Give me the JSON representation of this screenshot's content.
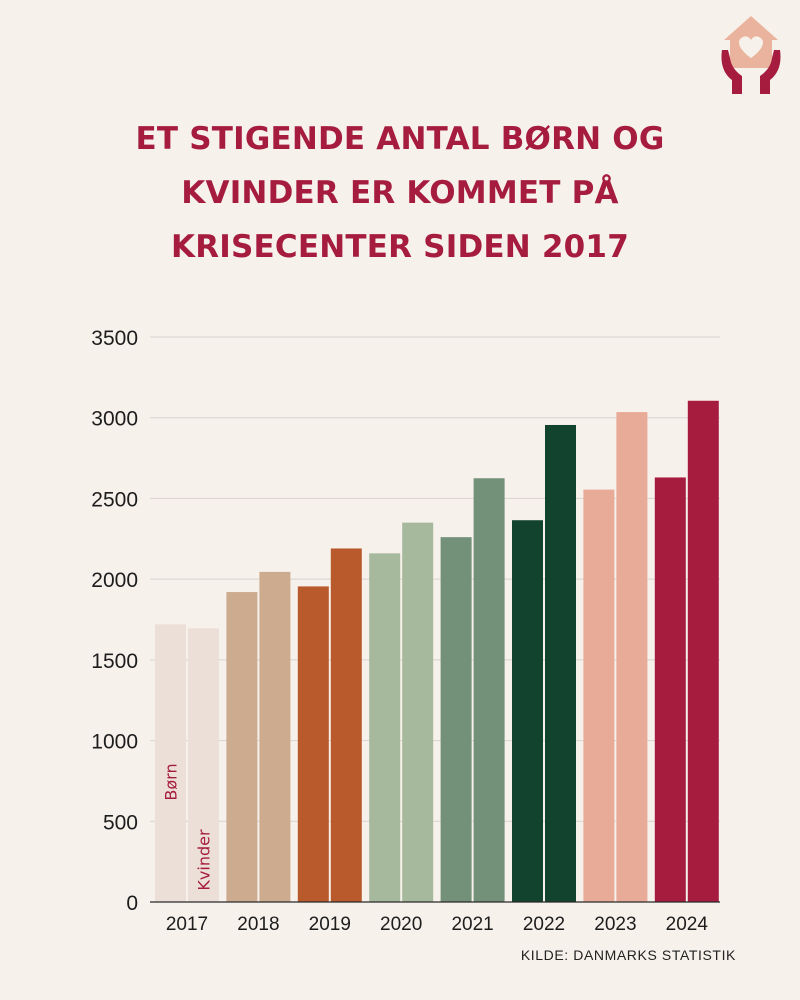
{
  "header": {
    "title_lines": [
      "ET STIGENDE ANTAL BØRN OG",
      "KVINDER ER KOMMET PÅ",
      "KRISECENTER SIDEN 2017"
    ],
    "logo_icon": "house-heart-hands-icon"
  },
  "footer": {
    "source": "KILDE: DANMARKS STATISTIK"
  },
  "chart_data": {
    "type": "bar",
    "title": "ET STIGENDE ANTAL BØRN OG KVINDER ER KOMMET PÅ KRISECENTER SIDEN 2017",
    "categories": [
      "2017",
      "2018",
      "2019",
      "2020",
      "2021",
      "2022",
      "2023",
      "2024"
    ],
    "series": [
      {
        "name": "Børn",
        "values": [
          1720,
          1920,
          1955,
          2160,
          2260,
          2365,
          2555,
          2630
        ]
      },
      {
        "name": "Kvinder",
        "values": [
          1695,
          2045,
          2190,
          2350,
          2625,
          2955,
          3035,
          3105
        ]
      }
    ],
    "year_colors": [
      "#ecdfd7",
      "#cdab8e",
      "#b95a2c",
      "#a7b99c",
      "#729178",
      "#11432e",
      "#e8ab98",
      "#a51c3f"
    ],
    "label_color": "#a51c3f",
    "yticks": [
      0,
      500,
      1000,
      1500,
      2000,
      2500,
      3000,
      3500
    ],
    "ylim": [
      0,
      3500
    ],
    "grid": true,
    "legend": "vertical labels inside first bar pair"
  }
}
